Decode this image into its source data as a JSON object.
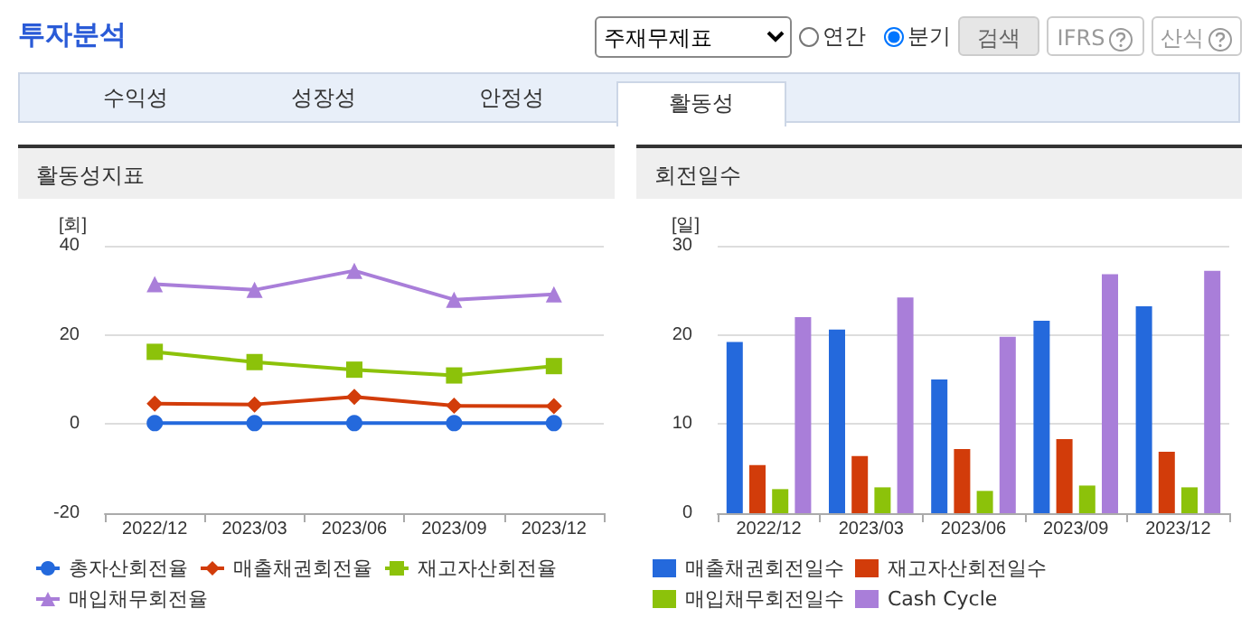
{
  "chart_data": [
    {
      "type": "other",
      "title": "투자분석",
      "annotations": [
        "주재무제표",
        "연간",
        "분기",
        "검색",
        "IFRS",
        "산식",
        "수익성",
        "성장성",
        "안정성",
        "활동성"
      ]
    },
    {
      "type": "line",
      "title": "활동성지표",
      "ylabel": "[회]",
      "categories": [
        "2022/12",
        "2023/03",
        "2023/06",
        "2023/09",
        "2023/12"
      ],
      "series": [
        {
          "name": "총자산회전율",
          "color": "#2469dc",
          "marker": "circle",
          "values": [
            0.2,
            0.2,
            0.2,
            0.2,
            0.2
          ]
        },
        {
          "name": "매출채권회전율",
          "color": "#d23c0a",
          "marker": "diamond",
          "values": [
            4.6,
            4.4,
            6.1,
            4.1,
            4.0
          ]
        },
        {
          "name": "재고자산회전율",
          "color": "#8cc20a",
          "marker": "square",
          "values": [
            16.2,
            13.9,
            12.2,
            10.9,
            13.0
          ]
        },
        {
          "name": "매입채무회전율",
          "color": "#a97ed9",
          "marker": "triangle",
          "values": [
            31.4,
            30.1,
            34.4,
            27.9,
            29.1
          ]
        }
      ],
      "ylim": [
        -20,
        40
      ],
      "yticks": [
        -20,
        0,
        20,
        40
      ],
      "grid": "y",
      "legend": "bottom"
    },
    {
      "type": "bar",
      "title": "회전일수",
      "ylabel": "[일]",
      "categories": [
        "2022/12",
        "2023/03",
        "2023/06",
        "2023/09",
        "2023/12"
      ],
      "series": [
        {
          "name": "매출채권회전일수",
          "color": "#2469dc",
          "values": [
            19.2,
            20.6,
            15.0,
            21.6,
            23.2
          ]
        },
        {
          "name": "재고자산회전일수",
          "color": "#d23c0a",
          "values": [
            5.4,
            6.4,
            7.2,
            8.3,
            6.9
          ]
        },
        {
          "name": "매입채무회전일수",
          "color": "#8cc20a",
          "values": [
            2.7,
            2.9,
            2.5,
            3.1,
            2.9
          ]
        },
        {
          "name": "Cash Cycle",
          "color": "#a97ed9",
          "values": [
            22.0,
            24.2,
            19.8,
            26.8,
            27.2
          ]
        }
      ],
      "ylim": [
        0,
        30
      ],
      "yticks": [
        0,
        10,
        20,
        30
      ],
      "grid": "y",
      "legend": "bottom"
    }
  ]
}
